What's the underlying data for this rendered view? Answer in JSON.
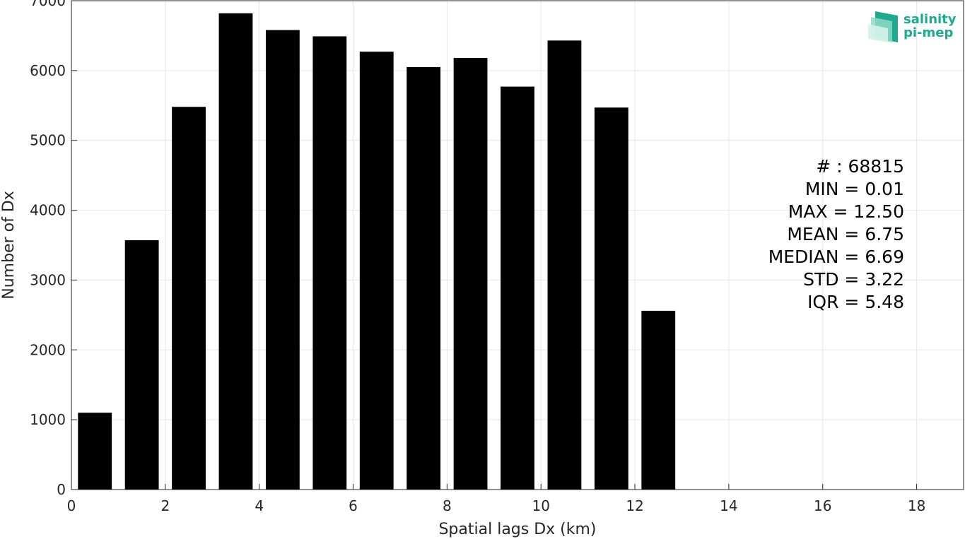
{
  "chart_data": {
    "type": "bar",
    "title": "",
    "xlabel": "Spatial lags Dx (km)",
    "ylabel": "Number of Dx",
    "x": [
      0.5,
      1.5,
      2.5,
      3.5,
      4.5,
      5.5,
      6.5,
      7.5,
      8.5,
      9.5,
      10.5,
      11.5,
      12.5
    ],
    "values": [
      1100,
      3570,
      5480,
      6820,
      6580,
      6490,
      6270,
      6050,
      6180,
      5770,
      6430,
      5470,
      2560
    ],
    "xlim": [
      0,
      19
    ],
    "ylim": [
      0,
      7000
    ],
    "xticks": [
      "0",
      "2",
      "4",
      "6",
      "8",
      "10",
      "12",
      "14",
      "16",
      "18"
    ],
    "yticks": [
      "0",
      "1000",
      "2000",
      "3000",
      "4000",
      "5000",
      "6000",
      "7000"
    ],
    "grid": true,
    "bar_color": "#000000",
    "stats": [
      "# : 68815",
      "MIN = 0.01",
      "MAX =  12.50",
      "MEAN = 6.75",
      "MEDIAN = 6.69",
      "STD = 3.22",
      "IQR = 5.48"
    ]
  },
  "logo": {
    "line1": "salinity",
    "line2": "pi-mep",
    "color": "#1fa98e"
  }
}
